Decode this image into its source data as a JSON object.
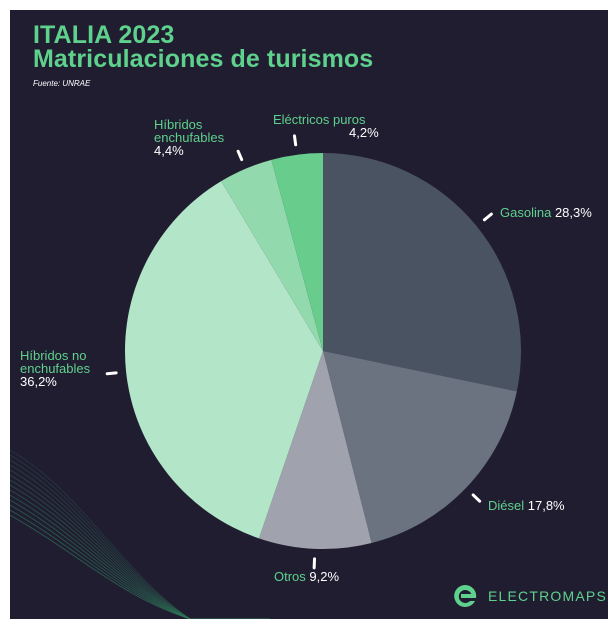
{
  "header": {
    "title_line1": "ITALIA 2023",
    "title_line2": "Matriculaciones de turismos",
    "source": "Fuente: UNRAE"
  },
  "brand": {
    "name": "ELECTROMAPS",
    "logo_icon": "electromaps-e-logo"
  },
  "colors": {
    "background": "#201d31",
    "accent": "#5ed18c",
    "label_white": "#ffffff"
  },
  "chart_data": {
    "type": "pie",
    "title": "Matriculaciones de turismos",
    "start": "12 o'clock",
    "direction": "clockwise",
    "slices": [
      {
        "name": "Gasolina",
        "value": 28.3,
        "value_label": "28,3%",
        "color": "#4a5362"
      },
      {
        "name": "Diésel",
        "value": 17.8,
        "value_label": "17,8%",
        "color": "#6b7380"
      },
      {
        "name": "Otros",
        "value": 9.2,
        "value_label": "9,2%",
        "color": "#a0a3ad"
      },
      {
        "name": "Híbridos no enchufables",
        "value": 36.2,
        "value_label": "36,2%",
        "color": "#b3e5c9"
      },
      {
        "name": "Híbridos enchufables",
        "value": 4.4,
        "value_label": "4,4%",
        "color": "#93d9ae"
      },
      {
        "name": "Eléctricos puros",
        "value": 4.2,
        "value_label": "4,2%",
        "color": "#67cc8c"
      }
    ]
  }
}
